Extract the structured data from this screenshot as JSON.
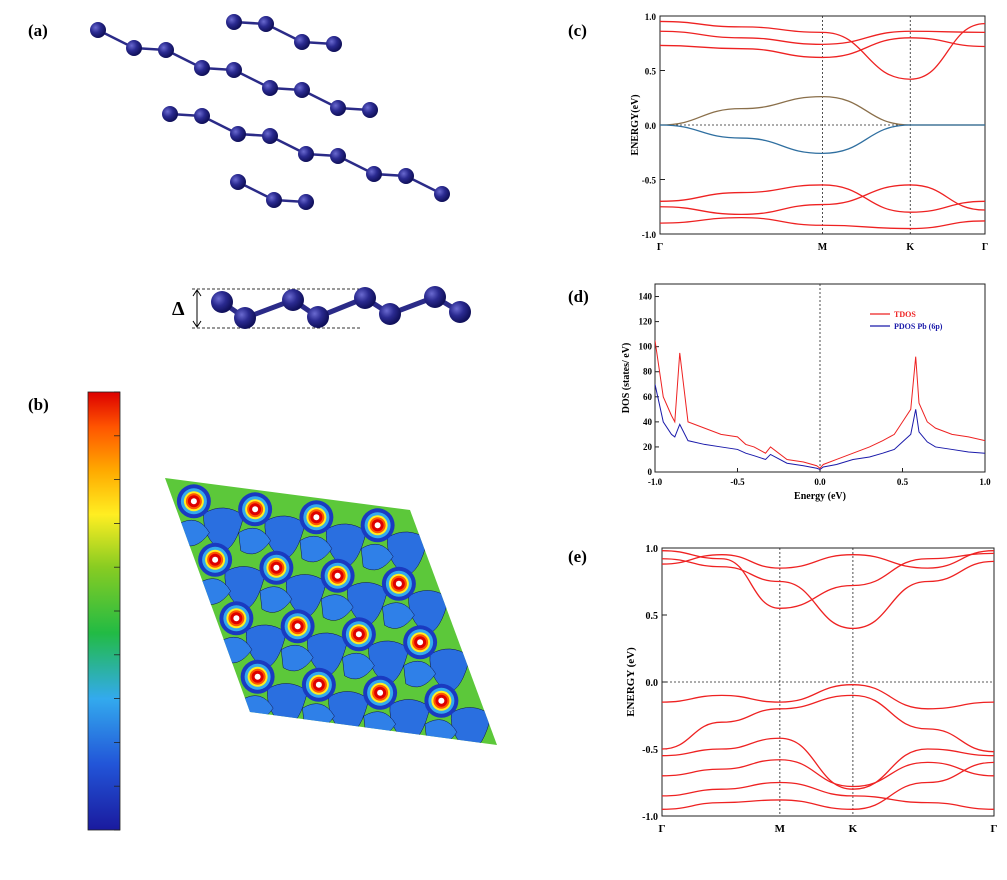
{
  "panel_labels": {
    "a": "(a)",
    "b": "(b)",
    "c": "(c)",
    "d": "(d)",
    "e": "(e)"
  },
  "side_view": {
    "buckling_label": "Δ"
  },
  "colorbar": {
    "colors": [
      "#1a1a9e",
      "#2255d8",
      "#33aaee",
      "#22bb44",
      "#88cc22",
      "#ffee22",
      "#ffaa00",
      "#ff5500",
      "#dd0000"
    ]
  },
  "colors": {
    "atom": "#1c1c7a",
    "bond": "#2b2b88",
    "band": "#ee2222",
    "dirac_cb": "#8a6f4a",
    "dirac_vb": "#2f6fa0",
    "pdos": "#1a1aaa",
    "tdos": "#ee2222"
  },
  "chart_data": [
    {
      "type": "line",
      "panel": "(c)",
      "ylabel": "ENERGY(eV)",
      "xlabel": "",
      "ylim": [
        -1.0,
        1.0
      ],
      "yticks": [
        "1.0",
        "0.5",
        "0.0",
        "-0.5",
        "-1.0"
      ],
      "kpath": [
        "Γ",
        "M",
        "K",
        "Γ"
      ],
      "kpos": [
        0,
        0.5,
        0.77,
        1
      ],
      "grid": false,
      "series": [
        {
          "x": [
            0,
            0.25,
            0.5,
            0.77,
            1
          ],
          "y": [
            0.0,
            0.15,
            0.26,
            0.0,
            0.0
          ]
        },
        {
          "x": [
            0,
            0.25,
            0.5,
            0.77,
            1
          ],
          "y": [
            0.0,
            -0.12,
            -0.26,
            0.0,
            0.0
          ]
        },
        {
          "x": [
            0,
            0.25,
            0.5,
            0.77,
            1
          ],
          "y": [
            0.73,
            0.7,
            0.62,
            0.8,
            0.72
          ]
        },
        {
          "x": [
            0,
            0.25,
            0.5,
            0.77,
            1
          ],
          "y": [
            0.86,
            0.8,
            0.74,
            0.86,
            0.85
          ]
        },
        {
          "x": [
            0,
            0.25,
            0.5,
            0.77,
            1
          ],
          "y": [
            0.95,
            0.9,
            0.85,
            0.42,
            0.93
          ]
        },
        {
          "x": [
            0,
            0.25,
            0.5,
            0.77,
            1
          ],
          "y": [
            -0.7,
            -0.62,
            -0.55,
            -0.8,
            -0.7
          ]
        },
        {
          "x": [
            0,
            0.25,
            0.5,
            0.77,
            1
          ],
          "y": [
            -0.75,
            -0.82,
            -0.73,
            -0.55,
            -0.78
          ]
        },
        {
          "x": [
            0,
            0.25,
            0.5,
            0.77,
            1
          ],
          "y": [
            -0.9,
            -0.85,
            -0.92,
            -0.95,
            -0.88
          ]
        }
      ]
    },
    {
      "type": "line",
      "panel": "(d)",
      "ylabel": "DOS (states/ eV)",
      "xlabel": "Energy (eV)",
      "xlim": [
        -1.0,
        1.0
      ],
      "ylim": [
        0,
        150
      ],
      "xticks": [
        "-1.0",
        "-0.5",
        "0.0",
        "0.5",
        "1.0"
      ],
      "yticks": [
        "0",
        "20",
        "40",
        "60",
        "80",
        "100",
        "120",
        "140"
      ],
      "legend": "top-right",
      "series": [
        {
          "name": "TDOS",
          "x": [
            -1.0,
            -0.95,
            -0.9,
            -0.88,
            -0.85,
            -0.8,
            -0.7,
            -0.6,
            -0.5,
            -0.45,
            -0.4,
            -0.33,
            -0.3,
            -0.2,
            -0.1,
            -0.02,
            0.0,
            0.02,
            0.1,
            0.2,
            0.3,
            0.38,
            0.45,
            0.5,
            0.55,
            0.58,
            0.6,
            0.65,
            0.7,
            0.8,
            0.9,
            1.0
          ],
          "y": [
            105,
            60,
            45,
            40,
            95,
            40,
            35,
            30,
            28,
            22,
            20,
            15,
            20,
            10,
            8,
            5,
            3,
            6,
            10,
            15,
            20,
            25,
            30,
            40,
            50,
            92,
            55,
            40,
            35,
            30,
            28,
            25
          ]
        },
        {
          "name": "PDOS Pb (6p)",
          "x": [
            -1.0,
            -0.95,
            -0.9,
            -0.88,
            -0.85,
            -0.8,
            -0.7,
            -0.6,
            -0.5,
            -0.45,
            -0.4,
            -0.33,
            -0.3,
            -0.2,
            -0.1,
            -0.02,
            0.0,
            0.02,
            0.1,
            0.2,
            0.3,
            0.38,
            0.45,
            0.5,
            0.55,
            0.58,
            0.6,
            0.65,
            0.7,
            0.8,
            0.9,
            1.0
          ],
          "y": [
            70,
            40,
            30,
            28,
            38,
            25,
            22,
            20,
            18,
            15,
            13,
            10,
            14,
            7,
            5,
            3,
            2,
            4,
            6,
            10,
            12,
            15,
            18,
            24,
            30,
            50,
            32,
            24,
            20,
            18,
            16,
            15
          ]
        }
      ]
    },
    {
      "type": "line",
      "panel": "(e)",
      "ylabel": "ENERGY (eV)",
      "xlabel": "",
      "ylim": [
        -1.0,
        1.0
      ],
      "yticks": [
        "1.0",
        "0.5",
        "0.0",
        "-0.5",
        "-1.0"
      ],
      "kpath": [
        "Γ",
        "M",
        "K",
        "Γ"
      ],
      "kpos": [
        0,
        0.355,
        0.575,
        1
      ],
      "series": [
        {
          "x": [
            0,
            0.18,
            0.355,
            0.575,
            0.8,
            1
          ],
          "y": [
            0.92,
            0.86,
            0.75,
            0.4,
            0.75,
            0.9
          ]
        },
        {
          "x": [
            0,
            0.18,
            0.355,
            0.575,
            0.8,
            1
          ],
          "y": [
            0.98,
            0.92,
            0.55,
            0.72,
            0.92,
            0.96
          ]
        },
        {
          "x": [
            0,
            0.18,
            0.355,
            0.575,
            0.8,
            1
          ],
          "y": [
            0.88,
            0.95,
            0.85,
            0.95,
            0.85,
            0.98
          ]
        },
        {
          "x": [
            0,
            0.18,
            0.355,
            0.575,
            0.8,
            1
          ],
          "y": [
            -0.15,
            -0.1,
            -0.15,
            -0.02,
            -0.2,
            -0.15
          ]
        },
        {
          "x": [
            0,
            0.18,
            0.355,
            0.575,
            0.8,
            1
          ],
          "y": [
            -0.5,
            -0.3,
            -0.2,
            -0.1,
            -0.35,
            -0.52
          ]
        },
        {
          "x": [
            0,
            0.18,
            0.355,
            0.575,
            0.8,
            1
          ],
          "y": [
            -0.55,
            -0.5,
            -0.42,
            -0.8,
            -0.5,
            -0.55
          ]
        },
        {
          "x": [
            0,
            0.18,
            0.355,
            0.575,
            0.8,
            1
          ],
          "y": [
            -0.7,
            -0.65,
            -0.58,
            -0.78,
            -0.6,
            -0.7
          ]
        },
        {
          "x": [
            0,
            0.18,
            0.355,
            0.575,
            0.8,
            1
          ],
          "y": [
            -0.85,
            -0.8,
            -0.75,
            -0.85,
            -0.9,
            -0.95
          ]
        },
        {
          "x": [
            0,
            0.18,
            0.355,
            0.575,
            0.8,
            1
          ],
          "y": [
            -0.95,
            -0.9,
            -0.88,
            -0.95,
            -0.75,
            -0.6
          ]
        }
      ]
    }
  ]
}
